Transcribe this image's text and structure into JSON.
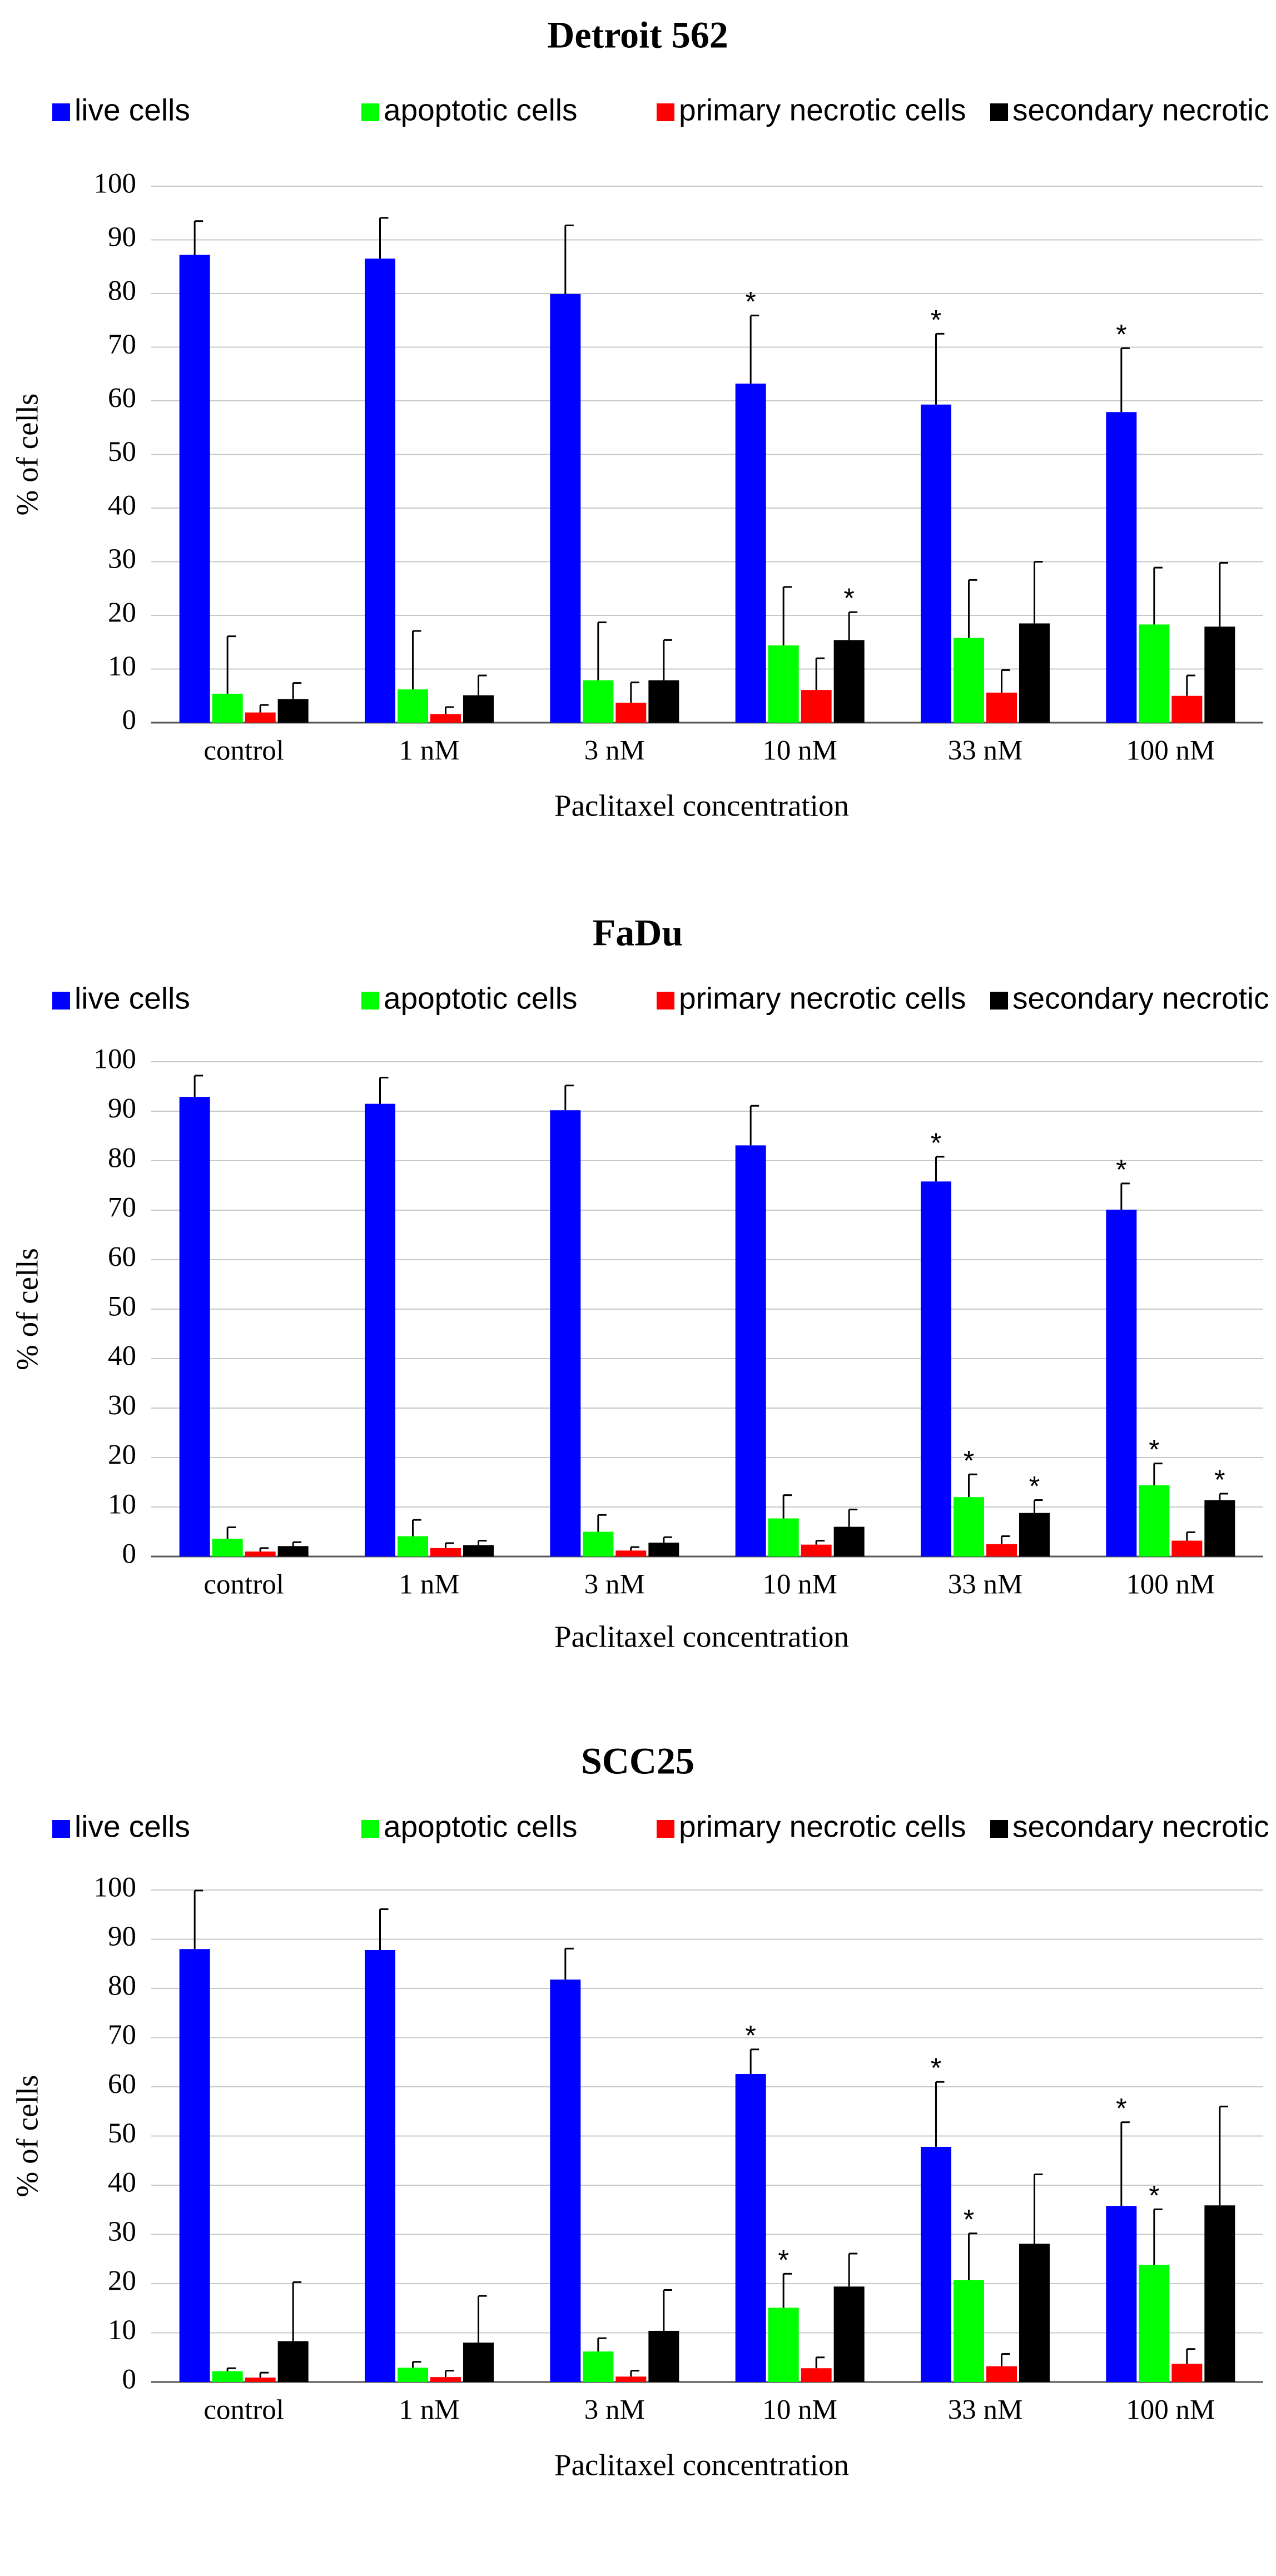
{
  "chart_data": [
    {
      "type": "bar",
      "title": "Detroit 562",
      "xlabel": "Paclitaxel concentration",
      "ylabel": "% of cells",
      "ylim": [
        0,
        100
      ],
      "yticks": [
        0,
        10,
        20,
        30,
        40,
        50,
        60,
        70,
        80,
        90,
        100
      ],
      "grid": true,
      "legend_position": "top",
      "categories": [
        "control",
        "1 nM",
        "3 nM",
        "10 nM",
        "33 nM",
        "100 nM"
      ],
      "series": [
        {
          "name": "live cells",
          "color": "#0000ff",
          "values": [
            87.2,
            86.5,
            79.9,
            63.2,
            59.3,
            57.9
          ],
          "errors": [
            6.3,
            7.6,
            12.8,
            12.7,
            13.2,
            11.9
          ],
          "significant": [
            false,
            false,
            false,
            true,
            true,
            true
          ]
        },
        {
          "name": "apoptotic cells",
          "color": "#00ff00",
          "values": [
            5.4,
            6.2,
            7.9,
            14.4,
            15.8,
            18.3
          ],
          "errors": [
            10.7,
            10.9,
            10.8,
            10.9,
            10.8,
            10.6
          ],
          "significant": [
            false,
            false,
            false,
            false,
            false,
            false
          ]
        },
        {
          "name": "primary necrotic cells",
          "color": "#ff0000",
          "values": [
            1.9,
            1.6,
            3.7,
            6.1,
            5.6,
            5.0
          ],
          "errors": [
            1.4,
            1.3,
            3.8,
            5.9,
            4.2,
            3.8
          ],
          "significant": [
            false,
            false,
            false,
            false,
            false,
            false
          ]
        },
        {
          "name": "secondary necrotic cells",
          "color": "#000000",
          "values": [
            4.4,
            5.1,
            7.9,
            15.4,
            18.5,
            17.9
          ],
          "errors": [
            3.0,
            3.7,
            7.5,
            5.2,
            11.5,
            11.9
          ],
          "significant": [
            false,
            false,
            false,
            true,
            false,
            false
          ]
        }
      ]
    },
    {
      "type": "bar",
      "title": "FaDu",
      "xlabel": "Paclitaxel concentration",
      "ylabel": "% of cells",
      "ylim": [
        0,
        100
      ],
      "yticks": [
        0,
        10,
        20,
        30,
        40,
        50,
        60,
        70,
        80,
        90,
        100
      ],
      "grid": true,
      "legend_position": "top",
      "categories": [
        "control",
        "1 nM",
        "3 nM",
        "10 nM",
        "33 nM",
        "100 nM"
      ],
      "series": [
        {
          "name": "live cells",
          "color": "#0000ff",
          "values": [
            92.9,
            91.5,
            90.2,
            83.1,
            75.8,
            70.1
          ],
          "errors": [
            4.3,
            5.3,
            5.0,
            8.0,
            5.0,
            5.3
          ],
          "significant": [
            false,
            false,
            false,
            false,
            true,
            true
          ]
        },
        {
          "name": "apoptotic cells",
          "color": "#00ff00",
          "values": [
            3.6,
            4.1,
            5.0,
            7.7,
            12.0,
            14.4
          ],
          "errors": [
            2.3,
            3.3,
            3.4,
            4.7,
            4.6,
            4.4
          ],
          "significant": [
            false,
            false,
            false,
            false,
            true,
            true
          ]
        },
        {
          "name": "primary necrotic cells",
          "color": "#ff0000",
          "values": [
            1.0,
            1.7,
            1.2,
            2.4,
            2.5,
            3.2
          ],
          "errors": [
            0.7,
            1.0,
            0.7,
            0.8,
            1.6,
            1.7
          ],
          "significant": [
            false,
            false,
            false,
            false,
            false,
            false
          ]
        },
        {
          "name": "secondary necrotic cells",
          "color": "#000000",
          "values": [
            2.1,
            2.3,
            2.8,
            6.0,
            8.8,
            11.4
          ],
          "errors": [
            0.8,
            0.9,
            1.1,
            3.5,
            2.6,
            1.3
          ],
          "significant": [
            false,
            false,
            false,
            false,
            true,
            true
          ]
        }
      ]
    },
    {
      "type": "bar",
      "title": "SCC25",
      "xlabel": "Paclitaxel concentration",
      "ylabel": "% of cells",
      "ylim": [
        0,
        100
      ],
      "yticks": [
        0,
        10,
        20,
        30,
        40,
        50,
        60,
        70,
        80,
        90,
        100
      ],
      "grid": true,
      "legend_position": "top",
      "categories": [
        "control",
        "1 nM",
        "3 nM",
        "10 nM",
        "33 nM",
        "100 nM"
      ],
      "series": [
        {
          "name": "live cells",
          "color": "#0000ff",
          "values": [
            88.0,
            87.8,
            81.8,
            62.6,
            47.8,
            35.8
          ],
          "errors": [
            11.9,
            8.3,
            6.3,
            5.0,
            13.2,
            17.0
          ],
          "significant": [
            false,
            false,
            false,
            true,
            true,
            true
          ]
        },
        {
          "name": "apoptotic cells",
          "color": "#00ff00",
          "values": [
            2.2,
            2.9,
            6.2,
            15.1,
            20.7,
            23.8
          ],
          "errors": [
            0.6,
            1.2,
            2.7,
            6.9,
            9.5,
            11.3
          ],
          "significant": [
            false,
            false,
            false,
            true,
            true,
            true
          ]
        },
        {
          "name": "primary necrotic cells",
          "color": "#ff0000",
          "values": [
            0.9,
            1.0,
            1.1,
            2.8,
            3.2,
            3.7
          ],
          "errors": [
            1.0,
            1.3,
            1.2,
            2.2,
            2.5,
            3.0
          ],
          "significant": [
            false,
            false,
            false,
            false,
            false,
            false
          ]
        },
        {
          "name": "secondary necrotic cells",
          "color": "#000000",
          "values": [
            8.3,
            8.0,
            10.4,
            19.4,
            28.1,
            35.9
          ],
          "errors": [
            12.0,
            9.5,
            8.3,
            6.7,
            14.1,
            20.1
          ],
          "significant": [
            false,
            false,
            false,
            false,
            false,
            false
          ]
        }
      ]
    }
  ],
  "significance_marker": "*"
}
